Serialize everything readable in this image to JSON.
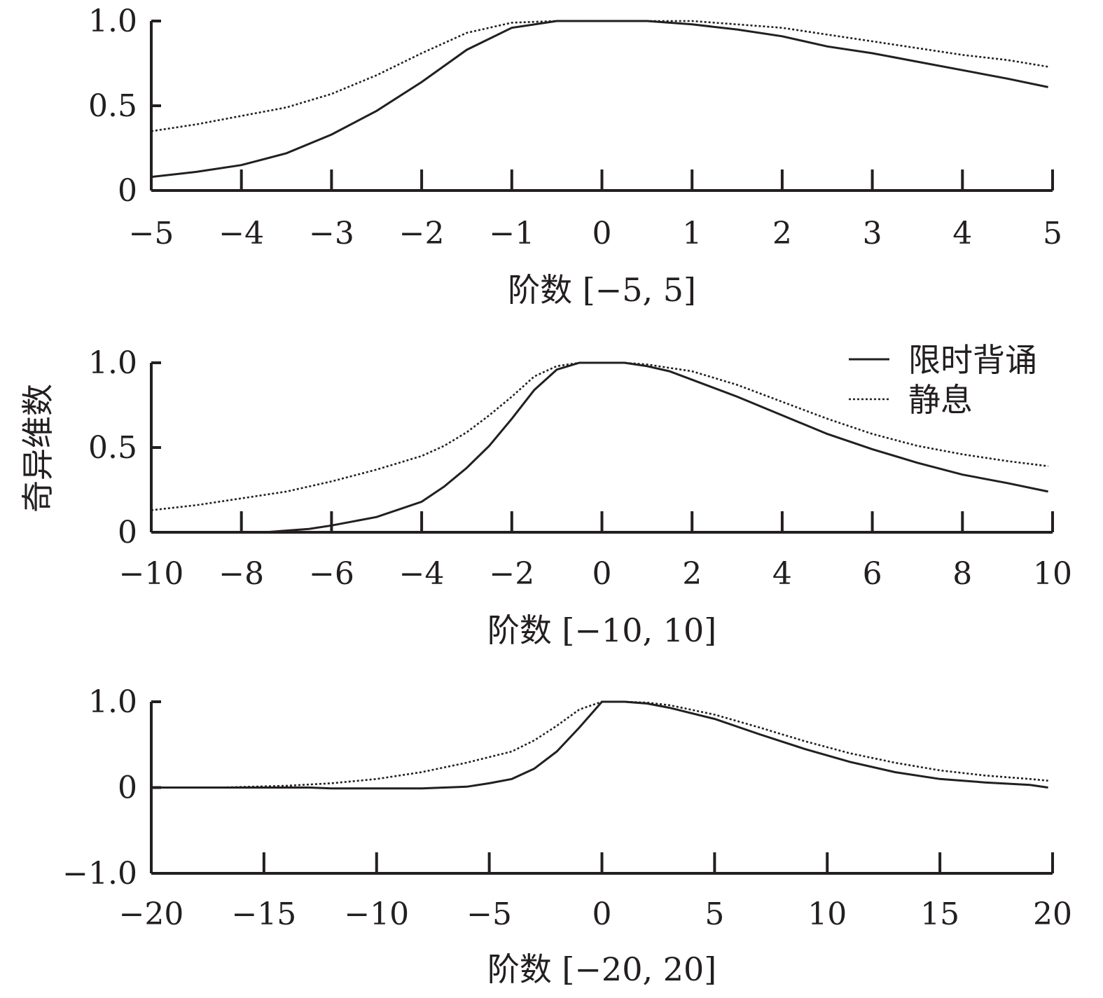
{
  "figure": {
    "ylabel": "奇异维数",
    "legend": [
      {
        "label": "限时背诵",
        "style": "solid"
      },
      {
        "label": "静息",
        "style": "dotted"
      }
    ]
  },
  "chart_data": [
    {
      "type": "line",
      "xlabel": "阶数 [−5, 5]",
      "xlim": [
        -5,
        5
      ],
      "ylim": [
        0,
        1.0
      ],
      "xticks": [
        -5,
        -4,
        -3,
        -2,
        -1,
        0,
        1,
        2,
        3,
        4,
        5
      ],
      "xtick_labels": [
        "−5",
        "−4",
        "−3",
        "−2",
        "−1",
        "0",
        "1",
        "2",
        "3",
        "4",
        "5"
      ],
      "yticks": [
        0,
        0.5,
        1.0
      ],
      "ytick_labels": [
        "0",
        "0.5",
        "1.0"
      ],
      "grid": false,
      "series": [
        {
          "name": "限时背诵",
          "style": "solid",
          "x": [
            -5,
            -4.5,
            -4,
            -3.5,
            -3,
            -2.5,
            -2,
            -1.5,
            -1,
            -0.5,
            0,
            0.5,
            1,
            1.5,
            2,
            2.5,
            3,
            3.5,
            4,
            4.5,
            4.95
          ],
          "y": [
            0.08,
            0.11,
            0.15,
            0.22,
            0.33,
            0.47,
            0.64,
            0.83,
            0.96,
            1.0,
            1.0,
            1.0,
            0.98,
            0.95,
            0.91,
            0.85,
            0.81,
            0.76,
            0.71,
            0.66,
            0.61
          ]
        },
        {
          "name": "静息",
          "style": "dotted",
          "x": [
            -5,
            -4.5,
            -4,
            -3.5,
            -3,
            -2.5,
            -2,
            -1.5,
            -1,
            -0.5,
            0,
            0.5,
            1,
            1.5,
            2,
            2.5,
            3,
            3.5,
            4,
            4.5,
            4.95
          ],
          "y": [
            0.35,
            0.39,
            0.44,
            0.49,
            0.57,
            0.68,
            0.81,
            0.93,
            0.99,
            1.0,
            1.0,
            1.0,
            1.0,
            0.98,
            0.96,
            0.92,
            0.88,
            0.84,
            0.8,
            0.77,
            0.73
          ]
        }
      ]
    },
    {
      "type": "line",
      "xlabel": "阶数 [−10, 10]",
      "xlim": [
        -10,
        10
      ],
      "ylim": [
        0,
        1.0
      ],
      "xticks": [
        -10,
        -8,
        -6,
        -4,
        -2,
        0,
        2,
        4,
        6,
        8,
        10
      ],
      "xtick_labels": [
        "−10",
        "−8",
        "−6",
        "−4",
        "−2",
        "0",
        "2",
        "4",
        "6",
        "8",
        "10"
      ],
      "yticks": [
        0,
        0.5,
        1.0
      ],
      "ytick_labels": [
        "0",
        "0.5",
        "1.0"
      ],
      "grid": false,
      "series": [
        {
          "name": "限时背诵",
          "style": "solid",
          "x": [
            -10,
            -9,
            -8,
            -7.5,
            -7,
            -6.5,
            -6,
            -5,
            -4,
            -3.5,
            -3,
            -2.5,
            -2,
            -1.5,
            -1,
            -0.5,
            0,
            0.5,
            1,
            1.5,
            2,
            3,
            4,
            5,
            6,
            7,
            8,
            9,
            9.9
          ],
          "y": [
            0,
            0,
            0,
            0,
            0.01,
            0.02,
            0.04,
            0.09,
            0.18,
            0.27,
            0.38,
            0.51,
            0.67,
            0.84,
            0.96,
            1.0,
            1.0,
            1.0,
            0.98,
            0.95,
            0.9,
            0.8,
            0.69,
            0.58,
            0.49,
            0.41,
            0.34,
            0.29,
            0.24
          ]
        },
        {
          "name": "静息",
          "style": "dotted",
          "x": [
            -10,
            -9,
            -8,
            -7,
            -6,
            -5,
            -4,
            -3.5,
            -3,
            -2.5,
            -2,
            -1.5,
            -1,
            -0.5,
            0,
            0.5,
            1,
            1.5,
            2,
            3,
            4,
            5,
            6,
            7,
            8,
            9,
            9.9
          ],
          "y": [
            0.13,
            0.16,
            0.2,
            0.24,
            0.3,
            0.37,
            0.45,
            0.51,
            0.59,
            0.69,
            0.8,
            0.92,
            0.98,
            1.0,
            1.0,
            1.0,
            0.99,
            0.97,
            0.95,
            0.87,
            0.77,
            0.67,
            0.58,
            0.51,
            0.46,
            0.42,
            0.39
          ]
        }
      ]
    },
    {
      "type": "line",
      "xlabel": "阶数 [−20, 20]",
      "xlim": [
        -20,
        20
      ],
      "ylim": [
        -1.0,
        1.0
      ],
      "xticks": [
        -20,
        -15,
        -10,
        -5,
        0,
        5,
        10,
        15,
        20
      ],
      "xtick_labels": [
        "−20",
        "−15",
        "−10",
        "−5",
        "0",
        "5",
        "10",
        "15",
        "20"
      ],
      "yticks": [
        -1.0,
        0,
        1.0
      ],
      "ytick_labels": [
        "−1.0",
        "0",
        "1.0"
      ],
      "grid": false,
      "series": [
        {
          "name": "限时背诵",
          "style": "solid",
          "x": [
            -20,
            -17,
            -14,
            -13,
            -12,
            -10,
            -8,
            -7,
            -6,
            -5,
            -4,
            -3,
            -2,
            -1,
            0,
            1,
            2,
            3,
            5,
            7,
            9,
            11,
            13,
            15,
            17,
            19,
            19.8
          ],
          "y": [
            0,
            0,
            0,
            0,
            -0.01,
            -0.01,
            -0.01,
            0,
            0.01,
            0.05,
            0.1,
            0.22,
            0.42,
            0.7,
            1.0,
            1.0,
            0.98,
            0.93,
            0.8,
            0.62,
            0.45,
            0.3,
            0.18,
            0.1,
            0.06,
            0.03,
            0.0
          ]
        },
        {
          "name": "静息",
          "style": "dotted",
          "x": [
            -20,
            -17,
            -14,
            -12,
            -10,
            -8,
            -6,
            -4,
            -3,
            -2,
            -1,
            0,
            1,
            2,
            3,
            5,
            7,
            9,
            11,
            13,
            15,
            17,
            19,
            19.8
          ],
          "y": [
            0,
            0,
            0.02,
            0.05,
            0.1,
            0.18,
            0.29,
            0.42,
            0.55,
            0.72,
            0.91,
            1.0,
            1.0,
            0.99,
            0.96,
            0.85,
            0.7,
            0.54,
            0.4,
            0.29,
            0.2,
            0.14,
            0.1,
            0.08
          ]
        }
      ]
    }
  ]
}
